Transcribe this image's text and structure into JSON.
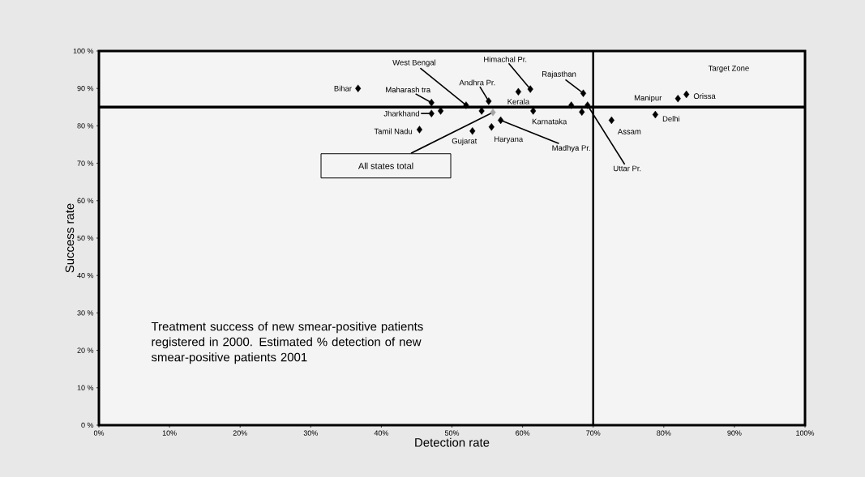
{
  "chart_data": {
    "type": "scatter",
    "xlabel": "Detection rate",
    "ylabel": "Success rate",
    "marker": "diamond",
    "series": [
      {
        "color": "#000000",
        "x": [
          36.7,
          47.1,
          47.1,
          48.4,
          45.4,
          52.0,
          52.9,
          54.2,
          55.2,
          55.6,
          56.9,
          59.4,
          61.1,
          61.5,
          66.9,
          68.6,
          69.2,
          68.4,
          72.6,
          78.8,
          82.0,
          83.2
        ],
        "values": [
          90.0,
          86.2,
          83.3,
          84.0,
          79.0,
          85.5,
          78.6,
          84.0,
          86.6,
          79.7,
          81.5,
          89.1,
          89.8,
          84.0,
          85.5,
          88.7,
          85.5,
          83.7,
          81.5,
          83.0,
          87.3,
          88.4
        ]
      },
      {
        "color": "#a6a6a6",
        "x": [
          55.8
        ],
        "values": [
          83.6
        ]
      }
    ],
    "xlim": [
      0,
      100
    ],
    "ylim": [
      0,
      100
    ],
    "xticks": [
      {
        "value": 0,
        "label": "0%"
      },
      {
        "value": 10,
        "label": "10%"
      },
      {
        "value": 20,
        "label": "20%"
      },
      {
        "value": 30,
        "label": "30%"
      },
      {
        "value": 40,
        "label": "40%"
      },
      {
        "value": 50,
        "label": "50%"
      },
      {
        "value": 60,
        "label": "60%"
      },
      {
        "value": 70,
        "label": "70%"
      },
      {
        "value": 80,
        "label": "80%"
      },
      {
        "value": 90,
        "label": "90%"
      },
      {
        "value": 100,
        "label": "100%"
      }
    ],
    "yticks": [
      {
        "value": 0,
        "label": "0 %"
      },
      {
        "value": 10,
        "label": "10 %"
      },
      {
        "value": 20,
        "label": "20 %"
      },
      {
        "value": 30,
        "label": "30 %"
      },
      {
        "value": 40,
        "label": "40 %"
      },
      {
        "value": 50,
        "label": "50 %"
      },
      {
        "value": 60,
        "label": "60 %"
      },
      {
        "value": 70,
        "label": "70 %"
      },
      {
        "value": 80,
        "label": "80 %"
      },
      {
        "value": 90,
        "label": "90 %"
      },
      {
        "value": 100,
        "label": "100 %"
      }
    ],
    "ref_lines": [
      {
        "axis": "y",
        "value": 85,
        "color": "#000000"
      },
      {
        "axis": "x",
        "value": 70,
        "color": "#000000"
      }
    ],
    "annotations": [
      {
        "text": "Bihar",
        "x": 36.7,
        "y": 90.0
      },
      {
        "text": "Maharash tra",
        "x": 47.1,
        "y": 86.2
      },
      {
        "text": "Jharkhand",
        "x": 47.1,
        "y": 83.3
      },
      {
        "text": "Tamil Nadu",
        "x": 45.4,
        "y": 79.0
      },
      {
        "text": "West Bengal",
        "x": 52.0,
        "y": 85.5
      },
      {
        "text": "Gujarat",
        "x": 52.9,
        "y": 78.6
      },
      {
        "text": "Andhra Pr.",
        "x": 55.2,
        "y": 86.6
      },
      {
        "text": "Haryana",
        "x": 55.6,
        "y": 79.7
      },
      {
        "text": "Madhya Pr.",
        "x": 56.9,
        "y": 81.5
      },
      {
        "text": "Kerala",
        "x": 59.4,
        "y": 89.1
      },
      {
        "text": "Himachal Pr.",
        "x": 61.1,
        "y": 89.8
      },
      {
        "text": "Karnataka",
        "x": 61.5,
        "y": 84.0
      },
      {
        "text": "Rajasthan",
        "x": 68.6,
        "y": 88.7
      },
      {
        "text": "Uttar Pr.",
        "x": 69.2,
        "y": 85.5
      },
      {
        "text": "Assam",
        "x": 72.6,
        "y": 81.5
      },
      {
        "text": "Delhi",
        "x": 78.8,
        "y": 83.0
      },
      {
        "text": "Manipur",
        "x": 82.0,
        "y": 87.3
      },
      {
        "text": "Orissa",
        "x": 83.2,
        "y": 88.4
      },
      "Target Zone",
      {
        "text": "All states total",
        "x": 55.8,
        "y": 83.6
      },
      "Treatment success of new smear-positive patients registered in 2000.  Estimated % detection of new smear-positive patients 2001"
    ]
  }
}
